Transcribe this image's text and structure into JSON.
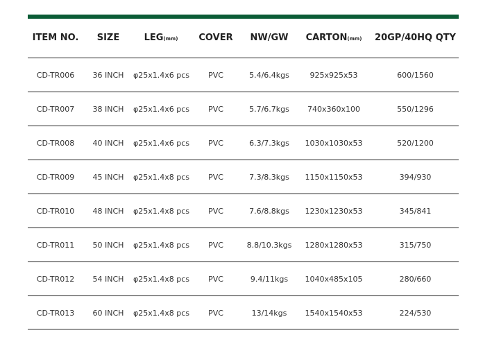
{
  "header": {
    "item": "ITEM NO.",
    "size": "SIZE",
    "leg": "LEG",
    "leg_unit": "(mm)",
    "cover": "COVER",
    "weight": "NW/GW",
    "carton": "CARTON",
    "carton_unit": "(mm)",
    "qty": "20GP/40HQ QTY"
  },
  "colors": {
    "accent": "#0b5c36"
  },
  "rows": [
    [
      "CD-TR006",
      "36 INCH",
      "φ25x1.4x6 pcs",
      "PVC",
      "5.4/6.4kgs",
      "925x925x53",
      "600/1560"
    ],
    [
      "CD-TR007",
      "38 INCH",
      "φ25x1.4x6 pcs",
      "PVC",
      "5.7/6.7kgs",
      "740x360x100",
      "550/1296"
    ],
    [
      "CD-TR008",
      "40 INCH",
      "φ25x1.4x6 pcs",
      "PVC",
      "6.3/7.3kgs",
      "1030x1030x53",
      "520/1200"
    ],
    [
      "CD-TR009",
      "45 INCH",
      "φ25x1.4x8 pcs",
      "PVC",
      "7.3/8.3kgs",
      "1150x1150x53",
      "394/930"
    ],
    [
      "CD-TR010",
      "48 INCH",
      "φ25x1.4x8 pcs",
      "PVC",
      "7.6/8.8kgs",
      "1230x1230x53",
      "345/841"
    ],
    [
      "CD-TR011",
      "50 INCH",
      "φ25x1.4x8 pcs",
      "PVC",
      "8.8/10.3kgs",
      "1280x1280x53",
      "315/750"
    ],
    [
      "CD-TR012",
      "54 INCH",
      "φ25x1.4x8 pcs",
      "PVC",
      "9.4/11kgs",
      "1040x485x105",
      "280/660"
    ],
    [
      "CD-TR013",
      "60 INCH",
      "φ25x1.4x8 pcs",
      "PVC",
      "13/14kgs",
      "1540x1540x53",
      "224/530"
    ]
  ]
}
